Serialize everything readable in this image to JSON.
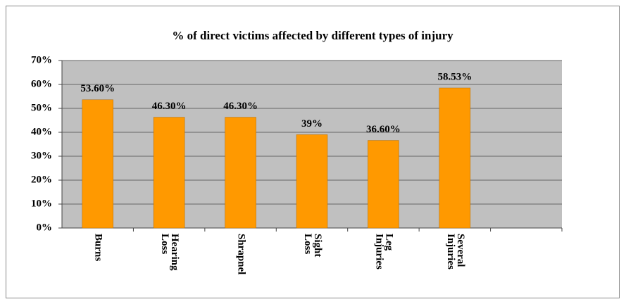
{
  "chart_data": {
    "type": "bar",
    "title": "% of direct victims affected by different types of injury",
    "categories": [
      "Burns",
      "Hearing Loss",
      "Shrapnel",
      "Sight Loss",
      "Leg Injuries",
      "Several Injuries",
      null
    ],
    "values": [
      53.6,
      46.3,
      46.3,
      39,
      36.6,
      58.53,
      null
    ],
    "value_labels": [
      "53.60%",
      "46.30%",
      "46.30%",
      "39%",
      "36.60%",
      "58.53%",
      null
    ],
    "color": "#ff9900",
    "ylim": [
      0,
      70
    ],
    "yticks": [
      {
        "value": 0,
        "label": "0%"
      },
      {
        "value": 10,
        "label": "10%"
      },
      {
        "value": 20,
        "label": "20%"
      },
      {
        "value": 30,
        "label": "30%"
      },
      {
        "value": 40,
        "label": "40%"
      },
      {
        "value": 50,
        "label": "50%"
      },
      {
        "value": 60,
        "label": "60%"
      },
      {
        "value": 70,
        "label": "70%"
      }
    ],
    "grid": true
  }
}
